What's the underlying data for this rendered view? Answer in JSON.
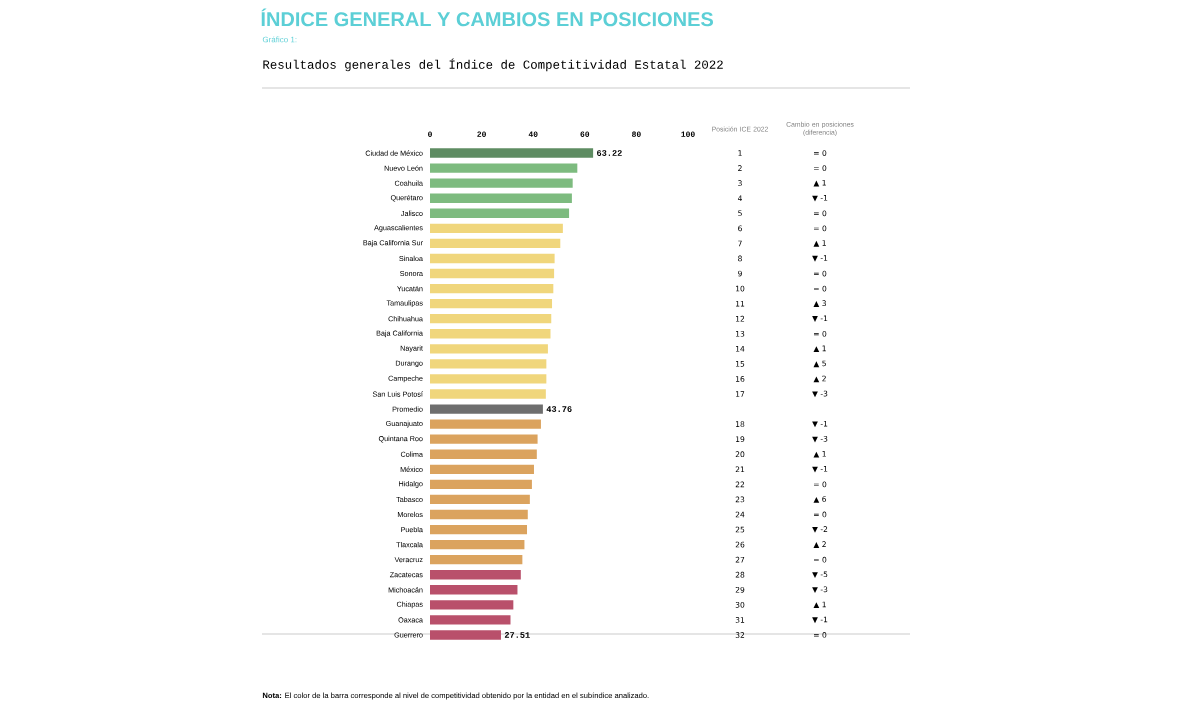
{
  "chart_data": {
    "type": "bar",
    "orientation": "horizontal",
    "title": "ÍNDICE GENERAL Y CAMBIOS EN POSICIONES",
    "subtitle": "Resultados generales del Índice de Competitividad Estatal 2022",
    "categories": [
      "Ciudad de México",
      "Nuevo León",
      "Coahuila",
      "Querétaro",
      "Jalisco",
      "Aguascalientes",
      "Baja California Sur",
      "Sinaloa",
      "Sonora",
      "Yucatán",
      "Tamaulipas",
      "Chihuahua",
      "Baja California",
      "Nayarit",
      "Durango",
      "Campeche",
      "San Luis Potosí",
      "Promedio",
      "Guanajuato",
      "Quintana Roo",
      "Colima",
      "México",
      "Hidalgo",
      "Tabasco",
      "Morelos",
      "Puebla",
      "Tlaxcala",
      "Veracruz",
      "Zacatecas",
      "Michoacán",
      "Chiapas",
      "Oaxaca",
      "Guerrero"
    ],
    "values": [
      63.22,
      57.1,
      55.3,
      55.0,
      53.9,
      51.5,
      50.5,
      48.3,
      48.1,
      47.8,
      47.3,
      47.0,
      46.7,
      45.7,
      45.1,
      45.1,
      44.9,
      43.76,
      43.0,
      41.7,
      41.4,
      40.3,
      39.5,
      38.7,
      37.9,
      37.6,
      36.6,
      35.8,
      35.2,
      33.9,
      32.3,
      31.2,
      27.51
    ],
    "colors": [
      "#5e8c62",
      "#7dbb7f",
      "#7dbb7f",
      "#7dbb7f",
      "#7dbb7f",
      "#f0d67c",
      "#f0d67c",
      "#f0d67c",
      "#f0d67c",
      "#f0d67c",
      "#f0d67c",
      "#f0d67c",
      "#f0d67c",
      "#f0d67c",
      "#f0d67c",
      "#f0d67c",
      "#f0d67c",
      "#6e6e6e",
      "#dba35e",
      "#dba35e",
      "#dba35e",
      "#dba35e",
      "#dba35e",
      "#dba35e",
      "#dba35e",
      "#dba35e",
      "#dba35e",
      "#dba35e",
      "#b9506b",
      "#b9506b",
      "#b9506b",
      "#b9506b",
      "#b9506b"
    ],
    "value_labels": [
      "63.22",
      null,
      null,
      null,
      null,
      null,
      null,
      null,
      null,
      null,
      null,
      null,
      null,
      null,
      null,
      null,
      null,
      "43.76",
      null,
      null,
      null,
      null,
      null,
      null,
      null,
      null,
      null,
      null,
      null,
      null,
      null,
      null,
      "27.51"
    ],
    "xlim": [
      0,
      100
    ],
    "xticks": [
      0,
      20,
      40,
      60,
      80,
      100
    ],
    "annotations": [
      "Gráfico 1:",
      "Posición ICE 2022",
      "Cambio en posiciones (diferencia)",
      "**Nota:** El color de la barra corresponde al nivel de competitividad obtenido por la entidad en el subíndice analizado.",
      "1",
      "= 0",
      "2",
      "= 0",
      "3",
      "▲ 1",
      "4",
      "▼ -1",
      "5",
      "= 0",
      "6",
      "= 0",
      "7",
      "▲ 1",
      "8",
      "▼ -1",
      "9",
      "= 0",
      "10",
      "= 0",
      "11",
      "▲ 3",
      "12",
      "▼ -1",
      "13",
      "= 0",
      "14",
      "▲ 1",
      "15",
      "▲ 5",
      "16",
      "▲ 2",
      "17",
      "▼ -3",
      "18",
      "▼ -1",
      "19",
      "▼ -3",
      "20",
      "▲ 1",
      "21",
      "▼ -1",
      "22",
      "= 0",
      "23",
      "▲ 6",
      "24",
      "= 0",
      "25",
      "▼ -2",
      "26",
      "▲ 2",
      "27",
      "= 0",
      "28",
      "▼ -5",
      "29",
      "▼ -3",
      "30",
      "▲ 1",
      "31",
      "▼ -1",
      "32",
      "= 0"
    ]
  }
}
